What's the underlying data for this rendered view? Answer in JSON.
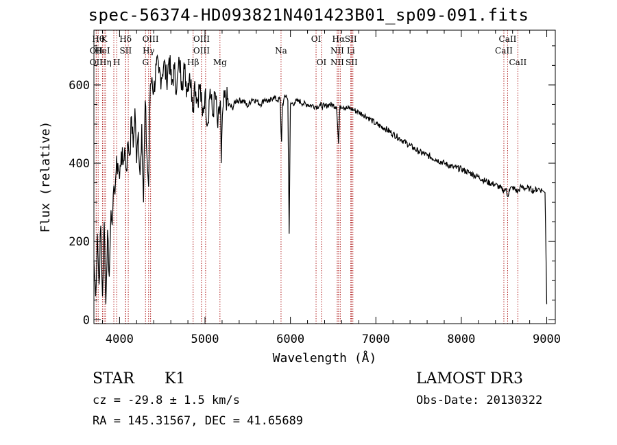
{
  "chart_data": {
    "type": "line",
    "title": "spec-56374-HD093821N401423B01_sp09-091.fits",
    "xlabel": "Wavelength (Å)",
    "ylabel": "Flux (relative)",
    "xlim": [
      3700,
      9100
    ],
    "ylim": [
      -10,
      740
    ],
    "xticks": [
      4000,
      5000,
      6000,
      7000,
      8000,
      9000
    ],
    "yticks": [
      0,
      200,
      400,
      600
    ],
    "grid": false,
    "series": [
      {
        "name": "spectrum",
        "x": [
          3700,
          3720,
          3740,
          3760,
          3780,
          3800,
          3820,
          3840,
          3860,
          3880,
          3900,
          3920,
          3940,
          3960,
          3980,
          4000,
          4020,
          4040,
          4060,
          4080,
          4100,
          4120,
          4140,
          4160,
          4180,
          4200,
          4220,
          4240,
          4260,
          4280,
          4300,
          4320,
          4340,
          4360,
          4380,
          4400,
          4430,
          4460,
          4490,
          4520,
          4550,
          4580,
          4610,
          4640,
          4670,
          4700,
          4730,
          4760,
          4790,
          4820,
          4850,
          4861,
          4880,
          4910,
          4940,
          4970,
          5000,
          5030,
          5060,
          5090,
          5120,
          5150,
          5180,
          5190,
          5210,
          5240,
          5280,
          5320,
          5360,
          5400,
          5450,
          5500,
          5550,
          5600,
          5650,
          5700,
          5750,
          5800,
          5850,
          5880,
          5890,
          5896,
          5905,
          5920,
          5950,
          5970,
          5985,
          6000,
          6050,
          6100,
          6150,
          6200,
          6250,
          6300,
          6350,
          6400,
          6450,
          6500,
          6540,
          6563,
          6580,
          6620,
          6660,
          6700,
          6750,
          6800,
          6850,
          6900,
          6950,
          7000,
          7100,
          7200,
          7300,
          7400,
          7500,
          7600,
          7700,
          7800,
          7900,
          8000,
          8100,
          8200,
          8300,
          8400,
          8498,
          8520,
          8542,
          8560,
          8600,
          8662,
          8700,
          8750,
          8800,
          8850,
          8900,
          8950,
          8980,
          9000
        ],
        "values": [
          150,
          60,
          220,
          90,
          240,
          60,
          250,
          40,
          230,
          110,
          280,
          270,
          330,
          380,
          400,
          360,
          430,
          395,
          440,
          380,
          455,
          420,
          520,
          440,
          540,
          400,
          480,
          370,
          500,
          300,
          560,
          420,
          340,
          600,
          620,
          580,
          650,
          630,
          620,
          660,
          610,
          670,
          600,
          640,
          590,
          660,
          610,
          640,
          590,
          630,
          570,
          540,
          610,
          560,
          600,
          520,
          580,
          500,
          590,
          520,
          580,
          490,
          560,
          400,
          540,
          570,
          550,
          540,
          560,
          560,
          560,
          545,
          565,
          560,
          550,
          565,
          555,
          570,
          560,
          565,
          480,
          455,
          545,
          560,
          575,
          560,
          220,
          550,
          555,
          560,
          552,
          550,
          548,
          545,
          548,
          545,
          550,
          548,
          545,
          450,
          548,
          545,
          540,
          540,
          535,
          530,
          525,
          518,
          510,
          500,
          490,
          475,
          460,
          445,
          430,
          420,
          410,
          400,
          390,
          385,
          375,
          365,
          352,
          345,
          330,
          335,
          315,
          332,
          338,
          327,
          340,
          336,
          335,
          330,
          335,
          330,
          325,
          40
        ]
      }
    ],
    "lines": [
      {
        "x": 3750,
        "label": "Hθ",
        "row": 1
      },
      {
        "x": 3727,
        "label": "OII",
        "row": 2
      },
      {
        "x": 3727,
        "label": "OII",
        "row": 3
      },
      {
        "x": 3820,
        "label": "K",
        "row": 1
      },
      {
        "x": 3800,
        "label": "HeI",
        "row": 2
      },
      {
        "x": 3835,
        "label": "Hη",
        "row": 3
      },
      {
        "x": 3933,
        "label": "",
        "row": 0
      },
      {
        "x": 3968,
        "label": "H",
        "row": 3
      },
      {
        "x": 4070,
        "label": "Hδ",
        "row": 1
      },
      {
        "x": 4072,
        "label": "SII",
        "row": 2
      },
      {
        "x": 4102,
        "label": "",
        "row": 0
      },
      {
        "x": 4304,
        "label": "G",
        "row": 3
      },
      {
        "x": 4340,
        "label": "Hγ",
        "row": 2
      },
      {
        "x": 4363,
        "label": "OIII",
        "row": 1
      },
      {
        "x": 4861,
        "label": "Hβ",
        "row": 3
      },
      {
        "x": 4959,
        "label": "OIII",
        "row": 1
      },
      {
        "x": 4959,
        "label": "OIII",
        "row": 2
      },
      {
        "x": 5007,
        "label": "",
        "row": 0
      },
      {
        "x": 5175,
        "label": "Mg",
        "row": 3
      },
      {
        "x": 5890,
        "label": "Na",
        "row": 2
      },
      {
        "x": 6300,
        "label": "OI",
        "row": 1
      },
      {
        "x": 6364,
        "label": "OI",
        "row": 3
      },
      {
        "x": 6548,
        "label": "NII",
        "row": 2
      },
      {
        "x": 6548,
        "label": "NII",
        "row": 3
      },
      {
        "x": 6563,
        "label": "Hα",
        "row": 1
      },
      {
        "x": 6583,
        "label": "",
        "row": 0
      },
      {
        "x": 6707,
        "label": "SII",
        "row": 1
      },
      {
        "x": 6707,
        "label": "Li",
        "row": 2
      },
      {
        "x": 6716,
        "label": "SII",
        "row": 3
      },
      {
        "x": 6731,
        "label": "",
        "row": 0
      },
      {
        "x": 8498,
        "label": "CaII",
        "row": 2
      },
      {
        "x": 8542,
        "label": "CaII",
        "row": 1
      },
      {
        "x": 8662,
        "label": "CaII",
        "row": 3
      }
    ]
  },
  "footer": {
    "object_class": "STAR",
    "subclass": "K1",
    "redshift": "cz = -29.8 ± 1.5 km/s",
    "coords": "RA = 145.31567, DEC =  41.65689",
    "survey": "LAMOST DR3",
    "obs_date": "Obs-Date: 20130322"
  }
}
